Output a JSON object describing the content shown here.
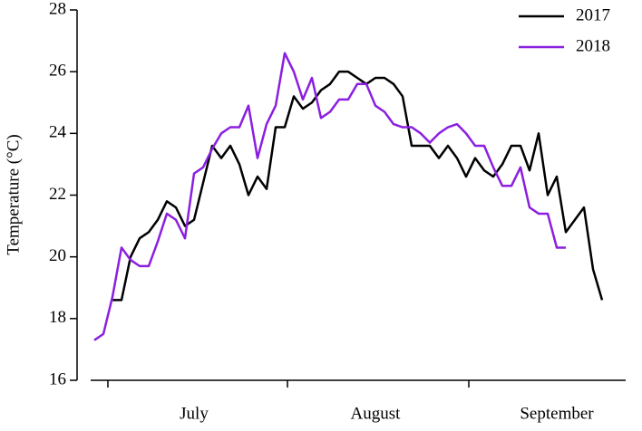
{
  "chart_data": {
    "type": "line",
    "y_label": "Temperature (°C)",
    "categories": [
      null,
      null,
      null,
      null,
      null,
      null,
      null,
      null,
      null,
      null,
      null,
      "July",
      null,
      null,
      null,
      null,
      null,
      null,
      null,
      null,
      null,
      null,
      null,
      null,
      null,
      null,
      null,
      null,
      null,
      null,
      null,
      "August",
      null,
      null,
      null,
      null,
      null,
      null,
      null,
      null,
      null,
      null,
      null,
      null,
      null,
      null,
      null,
      null,
      null,
      null,
      null,
      "September",
      null,
      null,
      null,
      null,
      null
    ],
    "series": [
      {
        "name": "2017",
        "color": "#000000",
        "values": [
          null,
          null,
          18.6,
          18.6,
          20.0,
          20.6,
          20.8,
          21.2,
          21.8,
          21.6,
          21.0,
          21.2,
          22.4,
          23.6,
          23.2,
          23.6,
          23.0,
          22.0,
          22.6,
          22.2,
          24.2,
          24.2,
          25.2,
          24.8,
          25.0,
          25.4,
          25.6,
          26.0,
          26.0,
          25.8,
          25.6,
          25.8,
          25.8,
          25.6,
          25.2,
          23.6,
          23.6,
          23.6,
          23.2,
          23.6,
          23.2,
          22.6,
          23.2,
          22.8,
          22.6,
          23.0,
          23.6,
          23.6,
          22.8,
          24.0,
          22.0,
          22.6,
          20.8,
          21.2,
          21.6,
          19.6,
          18.6
        ]
      },
      {
        "name": "2018",
        "color": "#8b1fe0",
        "values": [
          17.3,
          17.5,
          18.7,
          20.3,
          19.9,
          19.7,
          19.7,
          20.5,
          21.4,
          21.2,
          20.6,
          22.7,
          22.9,
          23.5,
          24.0,
          24.2,
          24.2,
          24.9,
          23.2,
          24.3,
          24.9,
          26.6,
          26.0,
          25.1,
          25.8,
          24.5,
          24.7,
          25.1,
          25.1,
          25.6,
          25.6,
          24.9,
          24.7,
          24.3,
          24.2,
          24.2,
          24.0,
          23.7,
          24.0,
          24.2,
          24.3,
          24.0,
          23.6,
          23.6,
          22.9,
          22.3,
          22.3,
          22.9,
          21.6,
          21.4,
          21.4,
          20.3,
          20.3,
          null,
          null,
          null,
          null
        ]
      }
    ],
    "ylim": [
      16,
      28
    ],
    "yticks": [
      16,
      18,
      20,
      22,
      24,
      26,
      28
    ],
    "grid": false,
    "legend": "top-right"
  }
}
